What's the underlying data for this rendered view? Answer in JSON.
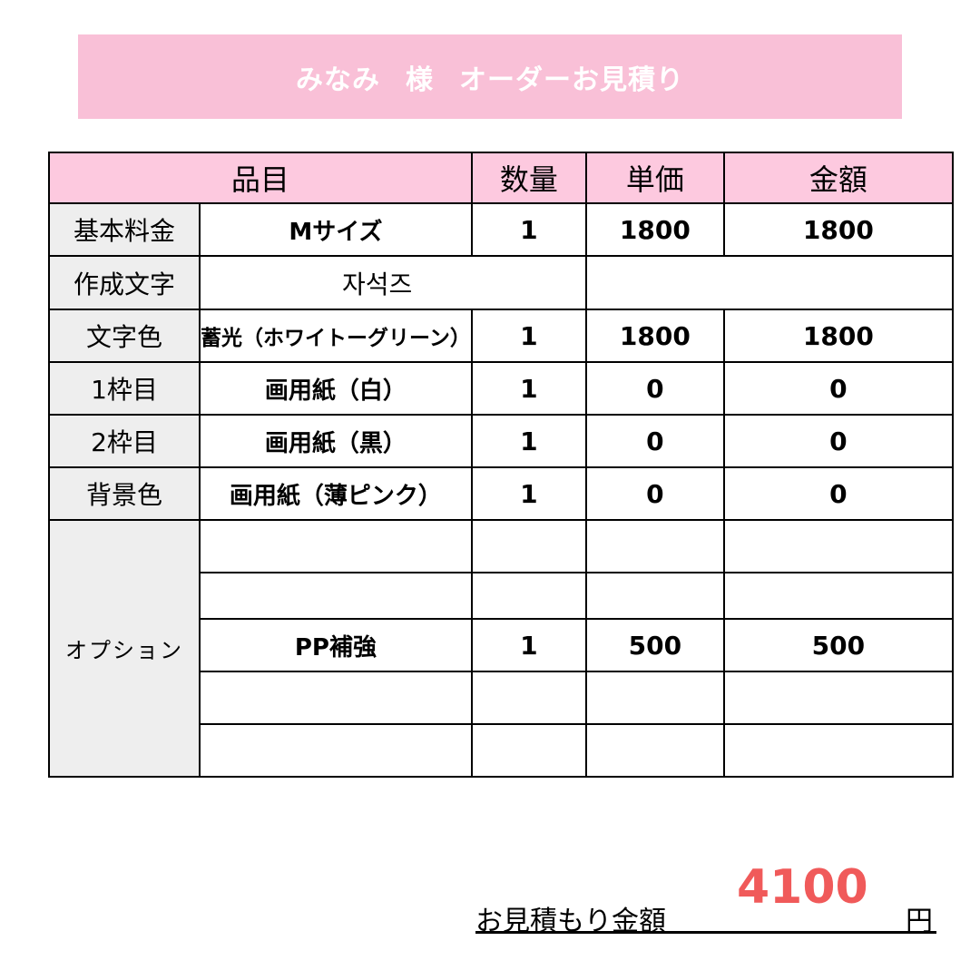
{
  "title": {
    "name": "みなみ",
    "honorific": "様",
    "doc": "オーダーお見積り"
  },
  "colors": {
    "banner": "#f9c0d7",
    "header": "#fdc9df",
    "label_bg": "#eeeeee",
    "total": "#f05a5a"
  },
  "table": {
    "headers": [
      "品目",
      "数量",
      "単価",
      "金額"
    ],
    "rows": [
      {
        "label": "基本料金",
        "item": "Mサイズ",
        "qty": "1",
        "price": "1800",
        "amount": "1800"
      },
      {
        "label": "作成文字",
        "item": "자석즈"
      },
      {
        "label": "文字色",
        "item": "蓄光（ホワイトーグリーン）",
        "qty": "1",
        "price": "1800",
        "amount": "1800"
      },
      {
        "label": "1枠目",
        "item": "画用紙（白）",
        "qty": "1",
        "price": "0",
        "amount": "0"
      },
      {
        "label": "2枠目",
        "item": "画用紙（黒）",
        "qty": "1",
        "price": "0",
        "amount": "0"
      },
      {
        "label": "背景色",
        "item": "画用紙（薄ピンク）",
        "qty": "1",
        "price": "0",
        "amount": "0"
      }
    ],
    "option_label": "オプション",
    "options": [
      {
        "item": "",
        "qty": "",
        "price": "",
        "amount": ""
      },
      {
        "item": "",
        "qty": "",
        "price": "",
        "amount": ""
      },
      {
        "item": "PP補強",
        "qty": "1",
        "price": "500",
        "amount": "500"
      },
      {
        "item": "",
        "qty": "",
        "price": "",
        "amount": ""
      },
      {
        "item": "",
        "qty": "",
        "price": "",
        "amount": ""
      }
    ]
  },
  "total": {
    "label": "お見積もり金額",
    "value": "4100",
    "unit": "円"
  }
}
